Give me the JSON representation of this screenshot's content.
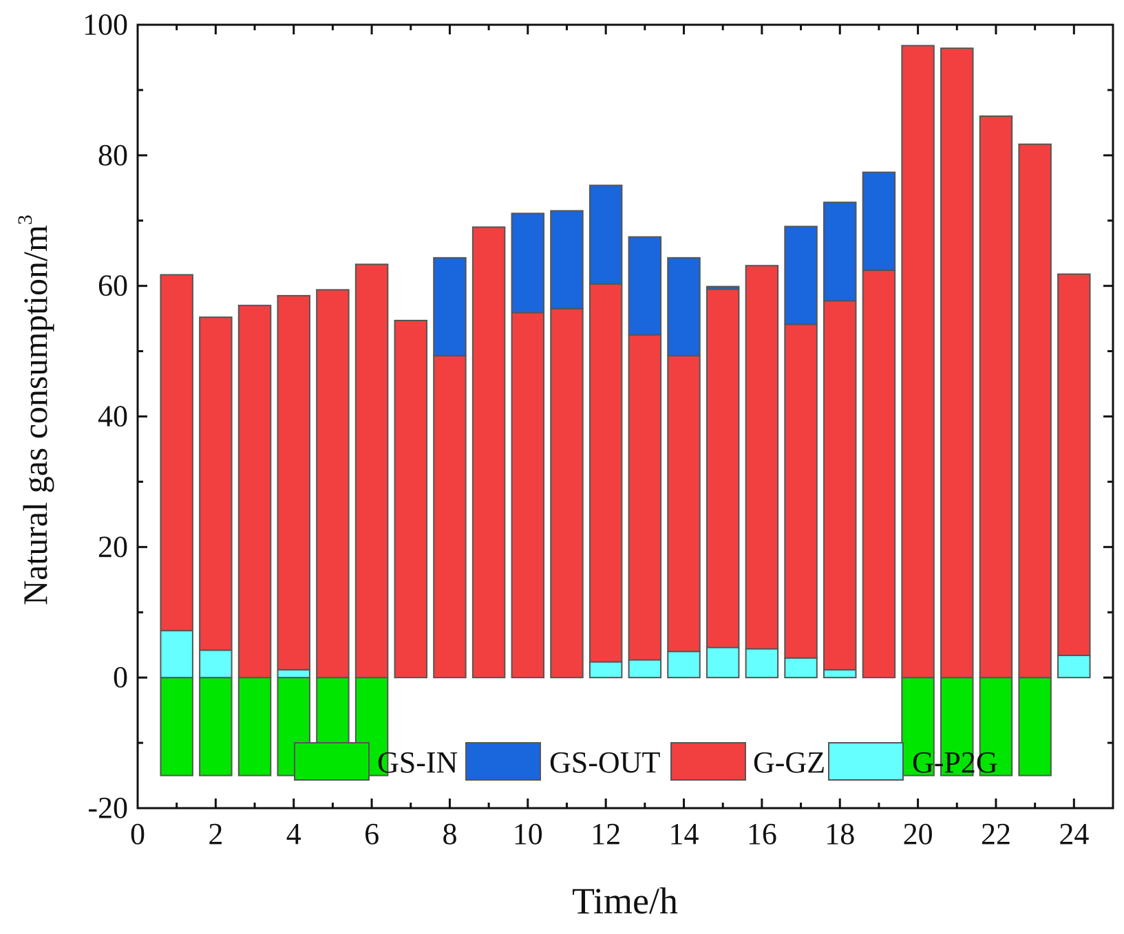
{
  "chart_data": {
    "type": "bar",
    "subtype": "stacked",
    "title": "",
    "xlabel": "Time/h",
    "ylabel_main": "Natural gas consumption/m",
    "ylabel_superscript": "3",
    "xlim": [
      0,
      25
    ],
    "ylim": [
      -20,
      100
    ],
    "x_ticks": [
      0,
      2,
      4,
      6,
      8,
      10,
      12,
      14,
      16,
      18,
      20,
      22,
      24
    ],
    "y_ticks": [
      -20,
      0,
      20,
      40,
      60,
      80,
      100
    ],
    "x": [
      1,
      2,
      3,
      4,
      5,
      6,
      7,
      8,
      9,
      10,
      11,
      12,
      13,
      14,
      15,
      16,
      17,
      18,
      19,
      20,
      21,
      22,
      23,
      24
    ],
    "legend_position": "bottom-center",
    "series": [
      {
        "name": "GS-IN",
        "color": "#00e600",
        "values": [
          -15,
          -15,
          -15,
          -15,
          -15,
          -15,
          0,
          0,
          0,
          0,
          0,
          0,
          0,
          0,
          0,
          0,
          0,
          0,
          0,
          -15,
          -15,
          -15,
          -15,
          0
        ]
      },
      {
        "name": "G-P2G",
        "color": "#66ffff",
        "values": [
          7.2,
          4.2,
          0,
          1.2,
          0,
          0,
          0,
          0,
          0,
          0,
          0,
          2.4,
          2.7,
          4,
          4.6,
          4.4,
          3,
          1.2,
          0,
          0,
          0,
          0,
          0,
          3.4
        ]
      },
      {
        "name": "G-GZ",
        "color": "#f24040",
        "values": [
          54.5,
          51,
          57,
          57.3,
          59.4,
          63.3,
          54.7,
          49.3,
          69,
          55.9,
          56.5,
          57.9,
          49.8,
          45.3,
          54.9,
          58.7,
          51.1,
          56.5,
          62.4,
          96.8,
          96.4,
          86,
          81.7,
          58.4
        ]
      },
      {
        "name": "GS-OUT",
        "color": "#1a66dd",
        "values": [
          0,
          0,
          0,
          0,
          0,
          0,
          0,
          15,
          0,
          15.2,
          15,
          15.1,
          15,
          15,
          0.4,
          0,
          15,
          15.1,
          15,
          0,
          0,
          0,
          0,
          0
        ]
      }
    ],
    "legend_order": [
      "GS-IN",
      "GS-OUT",
      "G-GZ",
      "G-P2G"
    ]
  }
}
